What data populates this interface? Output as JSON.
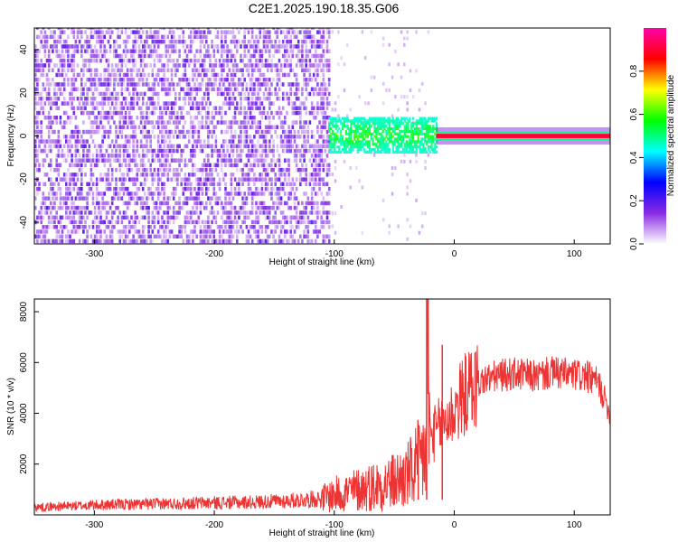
{
  "title": "C2E1.2025.190.18.35.G06",
  "chart_data": [
    {
      "type": "heatmap",
      "name": "spectrogram",
      "xlabel": "Height of straight line (km)",
      "ylabel": "Frequency (Hz)",
      "xlim": [
        -350,
        130
      ],
      "ylim": [
        -50,
        50
      ],
      "xticks": [
        -300,
        -200,
        -100,
        0,
        100
      ],
      "yticks": [
        -40,
        -20,
        0,
        20,
        40
      ],
      "colorbar": {
        "label": "Normalized spectral amplitude",
        "range": [
          0,
          1
        ],
        "ticks": [
          0.0,
          0.2,
          0.4,
          0.6,
          0.8
        ],
        "tick_labels": [
          "0.0",
          "0.2",
          "0.4",
          "0.6",
          "0.8"
        ],
        "colors": [
          "#ffffff",
          "#8a2be2",
          "#0000ff",
          "#00ffff",
          "#00ff00",
          "#ffff00",
          "#ff0000",
          "#ff00aa"
        ]
      },
      "regions": [
        {
          "x_range": [
            -350,
            -105
          ],
          "description": "broadband noise",
          "amplitude": [
            0.05,
            0.2
          ]
        },
        {
          "x_range": [
            -105,
            -15
          ],
          "freq_center": 0,
          "freq_halfwidth": 8,
          "amplitude": [
            0.3,
            0.5
          ]
        },
        {
          "x_range": [
            -15,
            130
          ],
          "freq_center": 0,
          "freq_halfwidth": 1,
          "amplitude": [
            0.8,
            0.9
          ]
        }
      ]
    },
    {
      "type": "line",
      "name": "snr",
      "xlabel": "Height of straight line (km)",
      "ylabel": "SNR (10 * v/v)",
      "xlim": [
        -350,
        130
      ],
      "ylim": [
        0,
        8500
      ],
      "xticks": [
        -300,
        -200,
        -100,
        0,
        100
      ],
      "yticks": [
        2000,
        4000,
        6000,
        8000
      ],
      "color": "#ee3333",
      "series": [
        {
          "x": [
            -350,
            -320,
            -290,
            -260,
            -230,
            -200,
            -170,
            -140,
            -110,
            -100,
            -90,
            -80,
            -70,
            -60,
            -50,
            -40,
            -35,
            -30,
            -25,
            -23,
            -20,
            -15,
            -10,
            -5,
            0,
            5,
            10,
            20,
            30,
            40,
            50,
            60,
            70,
            80,
            90,
            100,
            110,
            120,
            130
          ],
          "y": [
            300,
            350,
            400,
            420,
            450,
            480,
            500,
            550,
            650,
            800,
            900,
            1000,
            1100,
            1200,
            1300,
            1500,
            1700,
            2000,
            2400,
            8500,
            3000,
            3300,
            3600,
            3800,
            4100,
            4500,
            4800,
            5200,
            5400,
            5500,
            5550,
            5500,
            5450,
            5600,
            5550,
            5500,
            5450,
            5200,
            4000
          ]
        }
      ],
      "spikes": [
        {
          "x": -23,
          "y": 8500
        },
        {
          "x": -10,
          "y": 6700
        },
        {
          "x": -30,
          "y": 3500
        }
      ]
    }
  ]
}
